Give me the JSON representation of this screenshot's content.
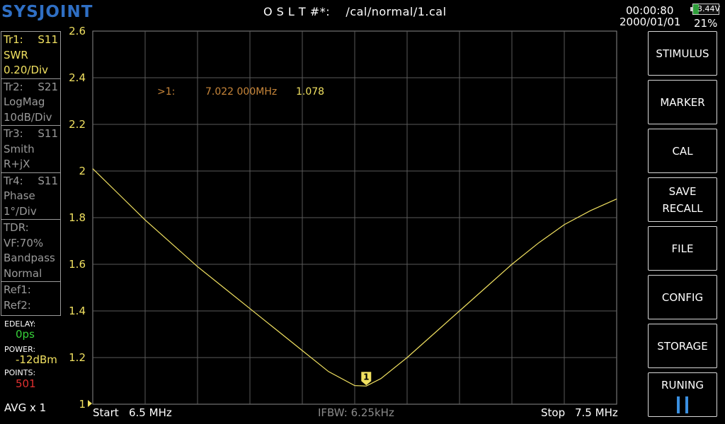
{
  "header": {
    "logo": "SYSJOINT",
    "cal_status": "O S L T #*:    /cal/normal/1.cal",
    "time": "00:00:80",
    "date": "2000/01/01",
    "battery_voltage": "3.44V",
    "battery_percent": "21%",
    "battery_level": 0.21
  },
  "traces": [
    {
      "name": "Tr1:",
      "param": "S11",
      "format": "SWR",
      "scale": "0.20/Div",
      "active": true
    },
    {
      "name": "Tr2:",
      "param": "S21",
      "format": "LogMag",
      "scale": "10dB/Div",
      "active": false
    },
    {
      "name": "Tr3:",
      "param": "S11",
      "format": "Smith",
      "scale": "R+jX",
      "active": false
    },
    {
      "name": "Tr4:",
      "param": "S11",
      "format": "Phase",
      "scale": "1°/Div",
      "active": false
    }
  ],
  "tdr": {
    "label": "TDR:",
    "vf": "VF:70%",
    "mode": "Bandpass",
    "window": "Normal"
  },
  "refs": {
    "ref1": "Ref1:",
    "ref2": "Ref2:"
  },
  "settings": {
    "edelay_label": "EDELAY:",
    "edelay_value": "0ps",
    "power_label": "POWER:",
    "power_value": "-12dBm",
    "points_label": "POINTS:",
    "points_value": "501",
    "avg": "AVG x 1"
  },
  "sweep": {
    "start_label": "Start",
    "start_value": "6.5 MHz",
    "stop_label": "Stop",
    "stop_value": "7.5 MHz",
    "ifbw": "IFBW: 6.25kHz"
  },
  "marker": {
    "label": ">1:",
    "frequency": "7.022 000MHz",
    "value": "1.078",
    "number": "1",
    "freq_mhz": 7.022,
    "swr": 1.078
  },
  "colors": {
    "trace": "#f0e060",
    "marker_text": "#c8863a",
    "grid": "#5a5a5a",
    "edelay": "#37d23a",
    "power": "#f0e060",
    "points": "#e03030",
    "logo": "#2f6fc4"
  },
  "chart_data": {
    "type": "line",
    "xlabel": "",
    "ylabel": "",
    "xlim": [
      6.5,
      7.5
    ],
    "ylim": [
      1,
      2.6
    ],
    "yticks": [
      "2.6",
      "2.4",
      "2.2",
      "2",
      "1.8",
      "1.6",
      "1.4",
      "1.2",
      "1"
    ],
    "grid": true,
    "series": [
      {
        "x": [
          6.5,
          6.55,
          6.6,
          6.65,
          6.7,
          6.75,
          6.8,
          6.85,
          6.9,
          6.95,
          7.0,
          7.022,
          7.05,
          7.1,
          7.15,
          7.2,
          7.25,
          7.3,
          7.35,
          7.4,
          7.45,
          7.5
        ],
        "values": [
          2.01,
          1.9,
          1.79,
          1.69,
          1.59,
          1.5,
          1.41,
          1.32,
          1.23,
          1.14,
          1.08,
          1.078,
          1.11,
          1.2,
          1.3,
          1.4,
          1.5,
          1.6,
          1.69,
          1.77,
          1.83,
          1.88
        ]
      }
    ]
  },
  "menu": [
    "STIMULUS",
    "MARKER",
    "CAL",
    "SAVE RECALL",
    "FILE",
    "CONFIG",
    "STORAGE"
  ],
  "run_button": "RUNING"
}
